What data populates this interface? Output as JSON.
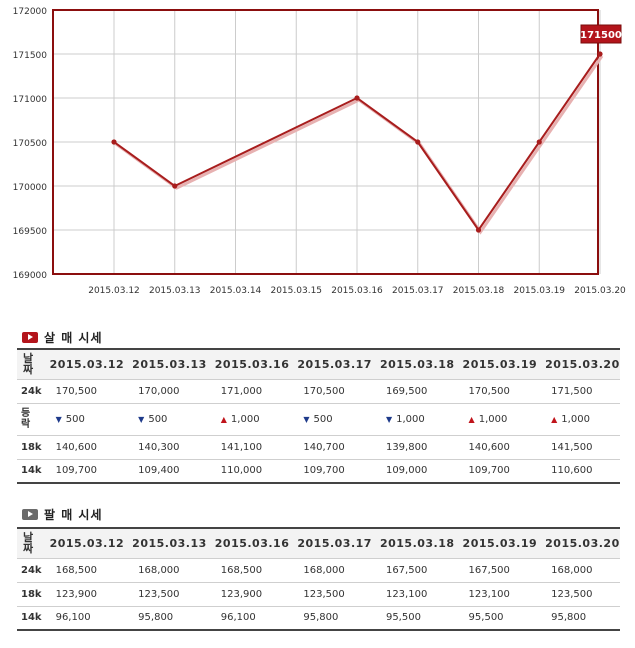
{
  "chart_data": {
    "type": "line",
    "x": [
      "2015.03.12",
      "2015.03.13",
      "2015.03.14",
      "2015.03.15",
      "2015.03.16",
      "2015.03.17",
      "2015.03.18",
      "2015.03.19",
      "2015.03.20"
    ],
    "y_ticks": [
      169000,
      169500,
      170000,
      170500,
      171000,
      171500,
      172000
    ],
    "ylim": [
      169000,
      172000
    ],
    "series": [
      {
        "values": [
          170500,
          170000,
          null,
          null,
          171000,
          170500,
          169500,
          170500,
          171500
        ]
      }
    ],
    "last_value_label": "171500",
    "grid": true,
    "colors": {
      "line": "#a81d1d",
      "frame": "#8b0e0e",
      "badge": "#b3141b"
    }
  },
  "buy": {
    "title": "살 매 시세",
    "header_label": "날짜",
    "dates": [
      "2015.03.12",
      "2015.03.13",
      "2015.03.16",
      "2015.03.17",
      "2015.03.18",
      "2015.03.19",
      "2015.03.20"
    ],
    "rows": [
      {
        "label": "24k",
        "values": [
          "170,500",
          "170,000",
          "171,000",
          "170,500",
          "169,500",
          "170,500",
          "171,500"
        ]
      },
      {
        "label": "등락",
        "changes": [
          {
            "dir": "down",
            "symbol": "▼",
            "value": "500"
          },
          {
            "dir": "down",
            "symbol": "▼",
            "value": "500"
          },
          {
            "dir": "up",
            "symbol": "▲",
            "value": "1,000"
          },
          {
            "dir": "down",
            "symbol": "▼",
            "value": "500"
          },
          {
            "dir": "down",
            "symbol": "▼",
            "value": "1,000"
          },
          {
            "dir": "up",
            "symbol": "▲",
            "value": "1,000"
          },
          {
            "dir": "up",
            "symbol": "▲",
            "value": "1,000"
          }
        ]
      },
      {
        "label": "18k",
        "values": [
          "140,600",
          "140,300",
          "141,100",
          "140,700",
          "139,800",
          "140,600",
          "141,500"
        ]
      },
      {
        "label": "14k",
        "values": [
          "109,700",
          "109,400",
          "110,000",
          "109,700",
          "109,000",
          "109,700",
          "110,600"
        ]
      }
    ]
  },
  "sell": {
    "title": "팔 매 시세",
    "header_label": "날짜",
    "dates": [
      "2015.03.12",
      "2015.03.13",
      "2015.03.16",
      "2015.03.17",
      "2015.03.18",
      "2015.03.19",
      "2015.03.20"
    ],
    "rows": [
      {
        "label": "24k",
        "values": [
          "168,500",
          "168,000",
          "168,500",
          "168,000",
          "167,500",
          "167,500",
          "168,000"
        ]
      },
      {
        "label": "18k",
        "values": [
          "123,900",
          "123,500",
          "123,900",
          "123,500",
          "123,100",
          "123,100",
          "123,500"
        ]
      },
      {
        "label": "14k",
        "values": [
          "96,100",
          "95,800",
          "96,100",
          "95,800",
          "95,500",
          "95,500",
          "95,800"
        ]
      }
    ]
  }
}
